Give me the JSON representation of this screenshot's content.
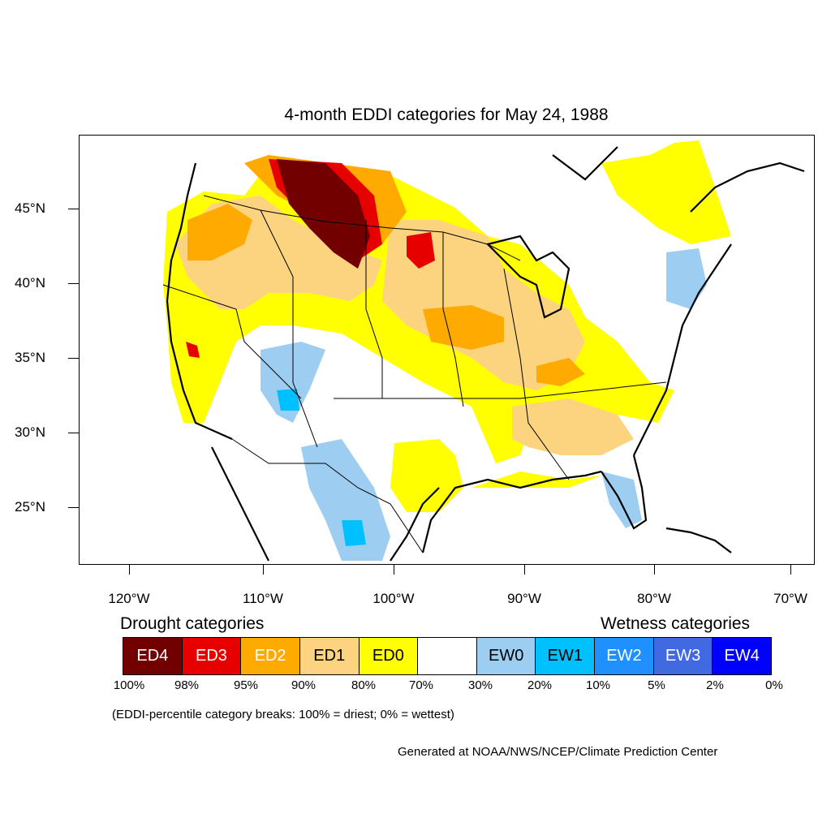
{
  "map": {
    "title": "4-month EDDI categories for May 24, 1988",
    "lat_labels": [
      "45°N",
      "40°N",
      "35°N",
      "30°N",
      "25°N"
    ],
    "lon_labels": [
      "120°W",
      "110°W",
      "100°W",
      "90°W",
      "80°W",
      "70°W"
    ]
  },
  "legend": {
    "drought_label": "Drought categories",
    "wetness_label": "Wetness categories",
    "categories": [
      {
        "label": "ED4",
        "color": "#730000",
        "text_color": "#ffffff"
      },
      {
        "label": "ED3",
        "color": "#e60000",
        "text_color": "#ffffff"
      },
      {
        "label": "ED2",
        "color": "#ffaa00",
        "text_color": "#ffffff"
      },
      {
        "label": "ED1",
        "color": "#fcd37f",
        "text_color": "#000000"
      },
      {
        "label": "ED0",
        "color": "#ffff00",
        "text_color": "#000000"
      },
      {
        "label": "",
        "color": "#ffffff",
        "text_color": "#000000"
      },
      {
        "label": "EW0",
        "color": "#9dcdf1",
        "text_color": "#000000"
      },
      {
        "label": "EW1",
        "color": "#00c0ff",
        "text_color": "#000000"
      },
      {
        "label": "EW2",
        "color": "#1e90ff",
        "text_color": "#ffffff"
      },
      {
        "label": "EW3",
        "color": "#4169e1",
        "text_color": "#ffffff"
      },
      {
        "label": "EW4",
        "color": "#0000ff",
        "text_color": "#ffffff"
      }
    ],
    "percentiles": [
      "100%",
      "98%",
      "95%",
      "90%",
      "80%",
      "70%",
      "30%",
      "20%",
      "10%",
      "5%",
      "2%",
      "0%"
    ]
  },
  "note": "(EDDI-percentile category breaks: 100% = driest; 0% = wettest)",
  "credit": "Generated at NOAA/NWS/NCEP/Climate Prediction Center"
}
